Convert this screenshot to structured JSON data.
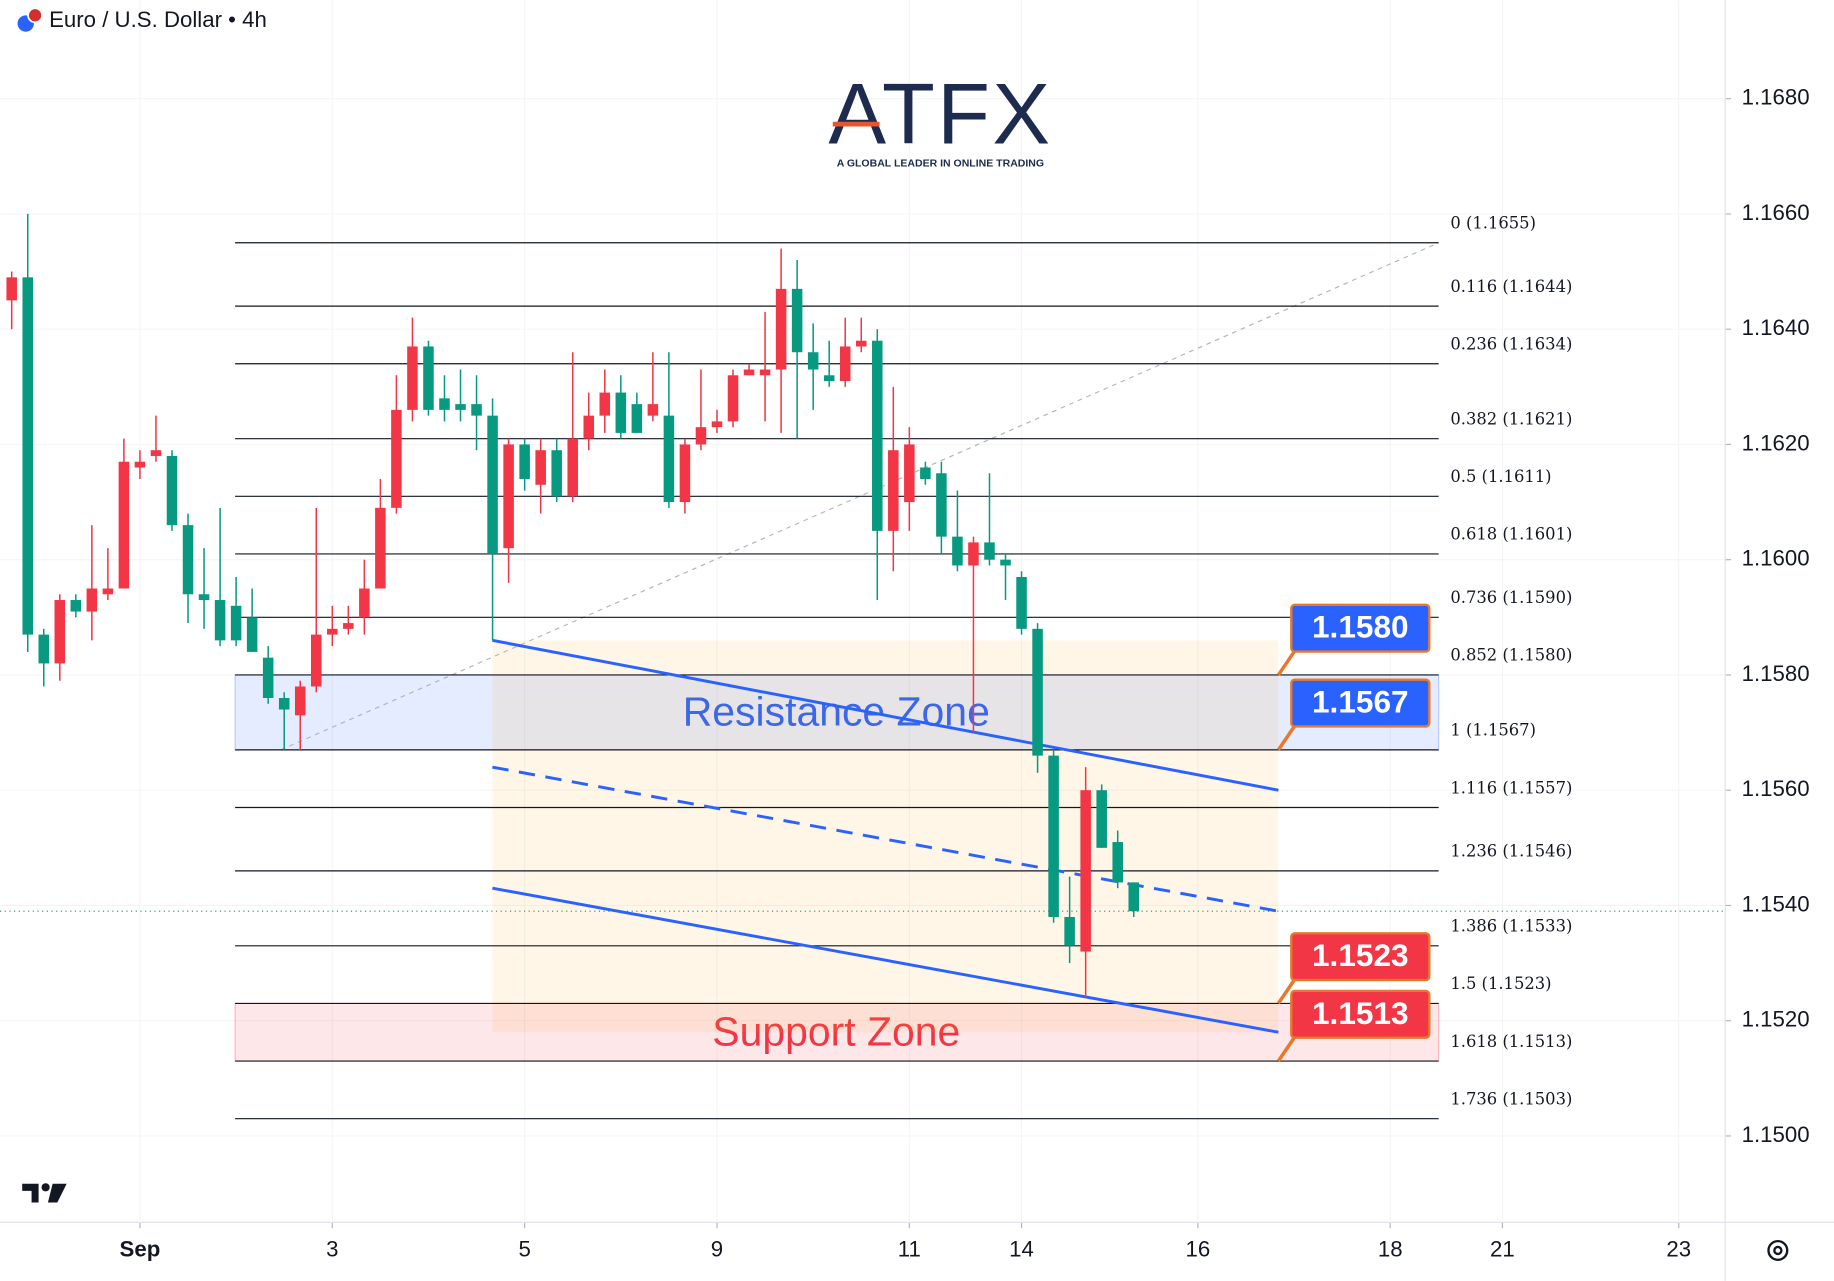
{
  "chart_data": {
    "type": "candlestick",
    "title": "Euro / U.S. Dollar • 4h",
    "logo": {
      "name": "ATFX",
      "tagline": "A GLOBAL LEADER IN ONLINE TRADING"
    },
    "up_color": "#f23645",
    "down_color": "#089981",
    "grid": true,
    "ylim": [
      1.1485,
      1.169
    ],
    "yticks": [
      {
        "value": 1.15,
        "label": "1.1500"
      },
      {
        "value": 1.152,
        "label": "1.1520"
      },
      {
        "value": 1.154,
        "label": "1.1540"
      },
      {
        "value": 1.156,
        "label": "1.1560"
      },
      {
        "value": 1.158,
        "label": "1.1580"
      },
      {
        "value": 1.16,
        "label": "1.1600"
      },
      {
        "value": 1.162,
        "label": "1.1620"
      },
      {
        "value": 1.164,
        "label": "1.1640"
      },
      {
        "value": 1.166,
        "label": "1.1660"
      },
      {
        "value": 1.168,
        "label": "1.1680"
      }
    ],
    "xlim": [
      -0.73,
      106.9
    ],
    "xticks": [
      {
        "value": 8,
        "label": "Sep"
      },
      {
        "value": 20,
        "label": "3"
      },
      {
        "value": 32,
        "label": "5"
      },
      {
        "value": 44,
        "label": "9"
      },
      {
        "value": 56,
        "label": "11"
      },
      {
        "value": 63,
        "label": "14"
      },
      {
        "value": 74,
        "label": "16"
      },
      {
        "value": 86,
        "label": "18"
      },
      {
        "value": 93,
        "label": "21"
      },
      {
        "value": 104,
        "label": "23"
      }
    ],
    "ohlc": [
      [
        1.1645,
        1.165,
        1.164,
        1.1649
      ],
      [
        1.1649,
        1.166,
        1.1584,
        1.1587
      ],
      [
        1.1587,
        1.1588,
        1.1578,
        1.1582
      ],
      [
        1.1582,
        1.1594,
        1.1579,
        1.1593
      ],
      [
        1.1593,
        1.1594,
        1.159,
        1.1591
      ],
      [
        1.1591,
        1.1606,
        1.1586,
        1.1595
      ],
      [
        1.1594,
        1.1602,
        1.1593,
        1.1595
      ],
      [
        1.1595,
        1.1621,
        1.1595,
        1.1617
      ],
      [
        1.1616,
        1.1619,
        1.1614,
        1.1617
      ],
      [
        1.1618,
        1.1625,
        1.1617,
        1.1619
      ],
      [
        1.1618,
        1.1619,
        1.1605,
        1.1606
      ],
      [
        1.1606,
        1.1608,
        1.1589,
        1.1594
      ],
      [
        1.1594,
        1.1602,
        1.1588,
        1.1593
      ],
      [
        1.1593,
        1.1609,
        1.1585,
        1.1586
      ],
      [
        1.1592,
        1.1597,
        1.1585,
        1.1586
      ],
      [
        1.159,
        1.1595,
        1.1584,
        1.1584
      ],
      [
        1.1583,
        1.1585,
        1.1575,
        1.1576
      ],
      [
        1.1576,
        1.1577,
        1.1567,
        1.1574
      ],
      [
        1.1573,
        1.1579,
        1.1567,
        1.1578
      ],
      [
        1.1578,
        1.1609,
        1.1577,
        1.1587
      ],
      [
        1.1587,
        1.1592,
        1.1585,
        1.1588
      ],
      [
        1.1588,
        1.1592,
        1.1587,
        1.1589
      ],
      [
        1.159,
        1.16,
        1.1587,
        1.1595
      ],
      [
        1.1595,
        1.1614,
        1.1595,
        1.1609
      ],
      [
        1.1609,
        1.1632,
        1.1608,
        1.1626
      ],
      [
        1.1626,
        1.1642,
        1.1624,
        1.1637
      ],
      [
        1.1637,
        1.1638,
        1.1625,
        1.1626
      ],
      [
        1.1628,
        1.1632,
        1.1624,
        1.1626
      ],
      [
        1.1627,
        1.1633,
        1.1624,
        1.1626
      ],
      [
        1.1627,
        1.1632,
        1.1619,
        1.1625
      ],
      [
        1.1625,
        1.1628,
        1.1586,
        1.1601
      ],
      [
        1.1602,
        1.1621,
        1.1596,
        1.162
      ],
      [
        1.162,
        1.1621,
        1.1612,
        1.1614
      ],
      [
        1.1613,
        1.1621,
        1.1608,
        1.1619
      ],
      [
        1.1619,
        1.1621,
        1.161,
        1.1611
      ],
      [
        1.1611,
        1.1636,
        1.161,
        1.1621
      ],
      [
        1.1621,
        1.1629,
        1.1619,
        1.1625
      ],
      [
        1.1625,
        1.1633,
        1.1622,
        1.1629
      ],
      [
        1.1629,
        1.1632,
        1.1621,
        1.1622
      ],
      [
        1.1627,
        1.1629,
        1.1622,
        1.1622
      ],
      [
        1.1625,
        1.1636,
        1.1624,
        1.1627
      ],
      [
        1.1625,
        1.1636,
        1.1609,
        1.161
      ],
      [
        1.161,
        1.1621,
        1.1608,
        1.162
      ],
      [
        1.162,
        1.1633,
        1.1619,
        1.1623
      ],
      [
        1.1623,
        1.1626,
        1.1622,
        1.1624
      ],
      [
        1.1624,
        1.1633,
        1.1623,
        1.1632
      ],
      [
        1.1632,
        1.1634,
        1.1632,
        1.1633
      ],
      [
        1.1632,
        1.1643,
        1.1624,
        1.1633
      ],
      [
        1.1633,
        1.1654,
        1.1622,
        1.1647
      ],
      [
        1.1647,
        1.1652,
        1.1621,
        1.1636
      ],
      [
        1.1636,
        1.1641,
        1.1626,
        1.1633
      ],
      [
        1.1632,
        1.1638,
        1.163,
        1.1631
      ],
      [
        1.1631,
        1.1642,
        1.163,
        1.1637
      ],
      [
        1.1637,
        1.1642,
        1.1636,
        1.1638
      ],
      [
        1.1638,
        1.164,
        1.1593,
        1.1605
      ],
      [
        1.1605,
        1.163,
        1.1598,
        1.1619
      ],
      [
        1.161,
        1.1623,
        1.1605,
        1.162
      ],
      [
        1.1616,
        1.1617,
        1.1613,
        1.1614
      ],
      [
        1.1615,
        1.1617,
        1.1601,
        1.1604
      ],
      [
        1.1604,
        1.1612,
        1.1598,
        1.1599
      ],
      [
        1.1599,
        1.1604,
        1.157,
        1.1603
      ],
      [
        1.1603,
        1.1615,
        1.1599,
        1.16
      ],
      [
        1.16,
        1.1601,
        1.1593,
        1.1599
      ],
      [
        1.1597,
        1.1598,
        1.1587,
        1.1588
      ],
      [
        1.1588,
        1.1589,
        1.1563,
        1.1566
      ],
      [
        1.1566,
        1.1567,
        1.1537,
        1.1538
      ],
      [
        1.1538,
        1.1545,
        1.153,
        1.1533
      ],
      [
        1.1532,
        1.1564,
        1.1524,
        1.156
      ],
      [
        1.156,
        1.1561,
        1.155,
        1.155
      ],
      [
        1.1551,
        1.1553,
        1.1543,
        1.1544
      ],
      [
        1.1544,
        1.1544,
        1.1538,
        1.1539
      ]
    ],
    "fib_levels": [
      {
        "value": 1.1655,
        "label": "0 (1.1655)"
      },
      {
        "value": 1.1644,
        "label": "0.116 (1.1644)"
      },
      {
        "value": 1.1634,
        "label": "0.236 (1.1634)"
      },
      {
        "value": 1.1621,
        "label": "0.382 (1.1621)"
      },
      {
        "value": 1.1611,
        "label": "0.5 (1.1611)"
      },
      {
        "value": 1.1601,
        "label": "0.618 (1.1601)"
      },
      {
        "value": 1.159,
        "label": "0.736 (1.1590)"
      },
      {
        "value": 1.158,
        "label": "0.852 (1.1580)"
      },
      {
        "value": 1.1567,
        "label": "1 (1.1567)"
      },
      {
        "value": 1.1557,
        "label": "1.116 (1.1557)"
      },
      {
        "value": 1.1546,
        "label": "1.236 (1.1546)"
      },
      {
        "value": 1.1533,
        "label": "1.386 (1.1533)"
      },
      {
        "value": 1.1523,
        "label": "1.5 (1.1523)"
      },
      {
        "value": 1.1513,
        "label": "1.618 (1.1513)"
      },
      {
        "value": 1.1503,
        "label": "1.736 (1.1503)"
      }
    ],
    "zones": [
      {
        "name": "Resistance Zone",
        "color": "#2962ff",
        "low": 1.1567,
        "high": 1.158
      },
      {
        "name": "Support Zone",
        "color": "#f23645",
        "low": 1.1513,
        "high": 1.1523
      }
    ],
    "price_tags": [
      {
        "value": 1.158,
        "label": "1.1580",
        "color": "#2962ff"
      },
      {
        "value": 1.1567,
        "label": "1.1567",
        "color": "#2962ff"
      },
      {
        "value": 1.1523,
        "label": "1.1523",
        "color": "#f23645"
      },
      {
        "value": 1.1513,
        "label": "1.1513",
        "color": "#f23645"
      }
    ],
    "channel": {
      "color": "#2962ff",
      "upper": [
        1.1586,
        1.156
      ],
      "middle": [
        1.1564,
        1.1539
      ],
      "lower": [
        1.1543,
        1.1518
      ]
    }
  }
}
